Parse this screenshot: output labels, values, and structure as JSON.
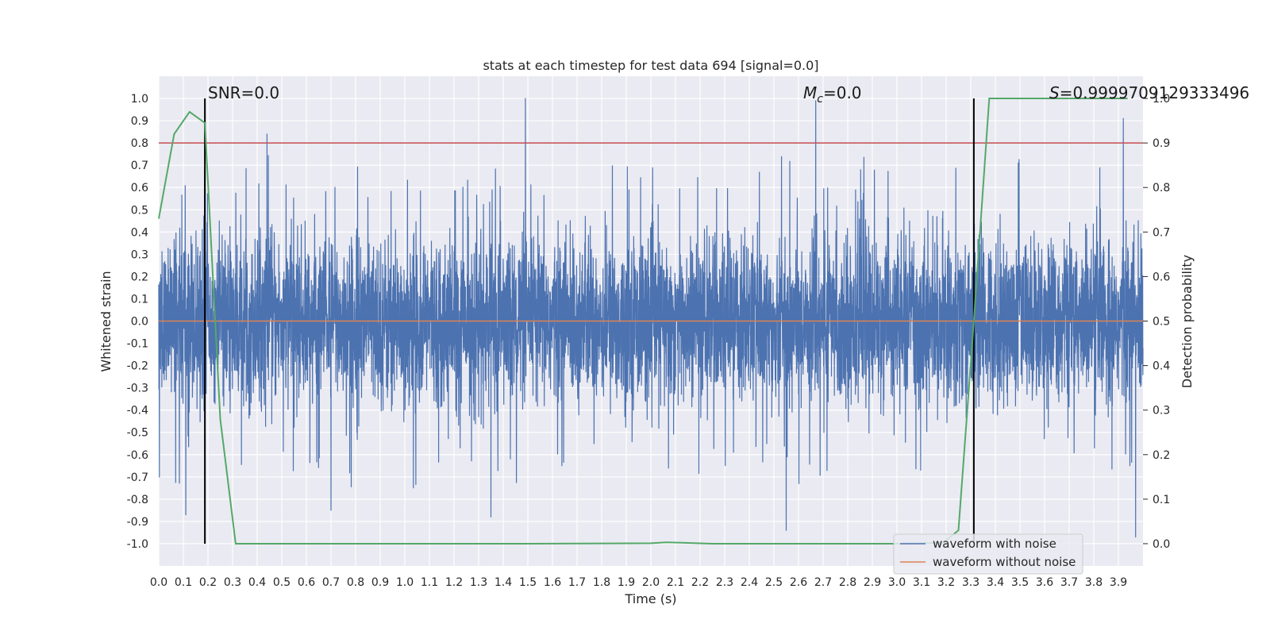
{
  "chart_data": {
    "type": "line",
    "title": "stats at each timestep for test data 694 [signal=0.0]",
    "xlabel": "Time (s)",
    "ylabel_left": "Whitened strain",
    "ylabel_right": "Detection probability",
    "xlim": [
      0.0,
      4.0
    ],
    "ylim_left": [
      -1.1,
      1.1
    ],
    "ylim_right": [
      -0.05,
      1.05
    ],
    "x_ticks": [
      "0.0",
      "0.1",
      "0.2",
      "0.3",
      "0.4",
      "0.5",
      "0.6",
      "0.7",
      "0.8",
      "0.9",
      "1.0",
      "1.1",
      "1.2",
      "1.3",
      "1.4",
      "1.5",
      "1.6",
      "1.7",
      "1.8",
      "1.9",
      "2.0",
      "2.1",
      "2.2",
      "2.3",
      "2.4",
      "2.5",
      "2.6",
      "2.7",
      "2.8",
      "2.9",
      "3.0",
      "3.1",
      "3.2",
      "3.3",
      "3.4",
      "3.5",
      "3.6",
      "3.7",
      "3.8",
      "3.9"
    ],
    "y_ticks_left": [
      "1.0",
      "0.9",
      "0.8",
      "0.7",
      "0.6",
      "0.5",
      "0.4",
      "0.3",
      "0.2",
      "0.1",
      "0.0",
      "-0.1",
      "-0.2",
      "-0.3",
      "-0.4",
      "-0.5",
      "-0.6",
      "-0.7",
      "-0.8",
      "-0.9",
      "-1.0"
    ],
    "y_ticks_right": [
      "1.0",
      "0.9",
      "0.8",
      "0.7",
      "0.6",
      "0.5",
      "0.4",
      "0.3",
      "0.2",
      "0.1",
      "0.0"
    ],
    "grid": true,
    "legend": {
      "placement": "lower-right",
      "entries": [
        "waveform with noise",
        "waveform without noise"
      ]
    },
    "annotations": {
      "snr": "SNR=0.0",
      "mc_symbol": "M",
      "mc_sub": "c",
      "mc_value": "=0.0",
      "s_symbol": "S",
      "s_value": "=0.9999709129333496"
    },
    "vertical_lines_x": [
      0.1875,
      3.3125
    ],
    "threshold_probability": 0.9,
    "series": [
      {
        "name": "waveform with noise",
        "axis": "left",
        "color": "#4c72b0",
        "kind": "noisy strain, amplitude about ±0.4 with spikes to ±1.0",
        "peaks": [
          {
            "x": 1.49,
            "y": 1.0
          },
          {
            "x": 2.67,
            "y": 0.99
          },
          {
            "x": 3.92,
            "y": 0.91
          },
          {
            "x": 0.44,
            "y": 0.84
          },
          {
            "x": 2.55,
            "y": -0.94
          },
          {
            "x": 0.11,
            "y": -0.87
          },
          {
            "x": 1.35,
            "y": -0.88
          },
          {
            "x": 0.7,
            "y": -0.85
          },
          {
            "x": 3.97,
            "y": -0.97
          }
        ]
      },
      {
        "name": "waveform without noise",
        "axis": "left",
        "color": "#dd8452",
        "x": [
          0.0,
          4.0
        ],
        "y": [
          0.0,
          0.0
        ]
      },
      {
        "axis": "right",
        "color": "#55a868",
        "x": [
          0.0,
          0.0625,
          0.125,
          0.1875,
          0.25,
          0.3125,
          0.375,
          0.5,
          1.0,
          1.5,
          2.0,
          2.0625,
          2.125,
          2.25,
          2.5,
          3.0,
          3.1875,
          3.25,
          3.3125,
          3.375,
          3.5,
          3.75,
          3.9375
        ],
        "y": [
          0.73,
          0.92,
          0.97,
          0.945,
          0.28,
          0.0,
          0.0,
          0.0,
          0.0,
          0.0,
          0.001,
          0.003,
          0.002,
          0.0,
          0.0,
          0.0,
          0.002,
          0.03,
          0.5,
          1.0,
          1.0,
          1.0,
          1.0
        ]
      }
    ]
  },
  "colors": {
    "axes_bg": "#eaeaf2",
    "grid": "#ffffff",
    "noisy": "#4c72b0",
    "clean": "#dd8452",
    "prob": "#55a868",
    "threshold": "#c44e52",
    "vline": "#000000"
  }
}
